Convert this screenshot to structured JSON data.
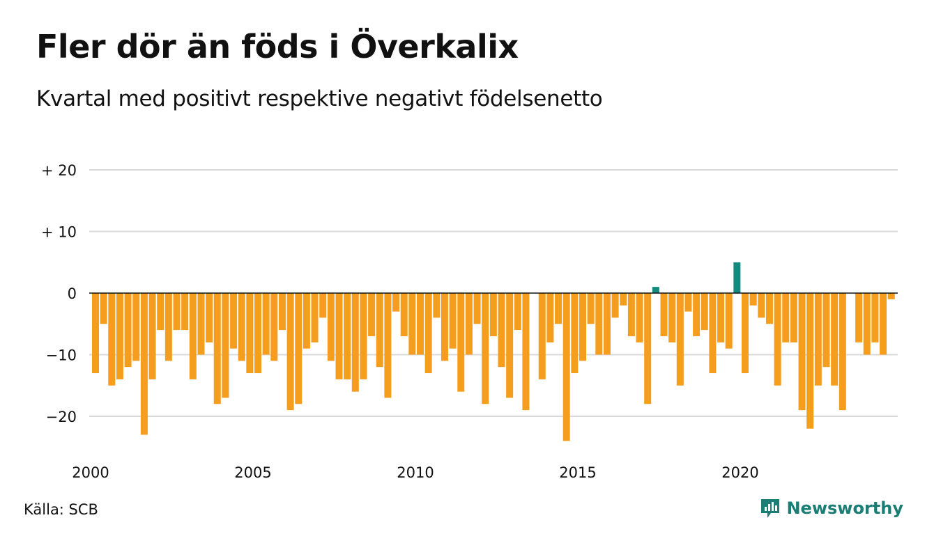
{
  "title": "Fler dör än föds i Överkalix",
  "subtitle": "Kvartal med positivt respektive negativt födelsenetto",
  "source": "Källa: SCB",
  "brand": {
    "name": "Newsworthy",
    "icon": "newsworthy-chart-bubble-icon",
    "color": "#1a7e75"
  },
  "colors": {
    "positive": "#14897d",
    "negative": "#f59d1c",
    "grid": "#d9d9d9",
    "zero_line": "#111111"
  },
  "chart_data": {
    "type": "bar",
    "x_start_year": 2000,
    "quarters_per_year": 4,
    "xticks": [
      "2000",
      "2005",
      "2010",
      "2015",
      "2020"
    ],
    "yticks": [
      {
        "value": 20,
        "label": "+ 20"
      },
      {
        "value": 10,
        "label": "+ 10"
      },
      {
        "value": 0,
        "label": "0"
      },
      {
        "value": -10,
        "label": "−10"
      },
      {
        "value": -20,
        "label": "−20"
      }
    ],
    "ylim": [
      -25,
      20
    ],
    "grid": true,
    "values": [
      -13,
      -5,
      -15,
      -14,
      -12,
      -11,
      -23,
      -14,
      -6,
      -11,
      -6,
      -6,
      -14,
      -10,
      -8,
      -18,
      -17,
      -9,
      -11,
      -13,
      -13,
      -10,
      -11,
      -6,
      -19,
      -18,
      -9,
      -8,
      -4,
      -11,
      -14,
      -14,
      -16,
      -14,
      -7,
      -12,
      -17,
      -3,
      -7,
      -10,
      -10,
      -13,
      -4,
      -11,
      -9,
      -16,
      -10,
      -5,
      -18,
      -7,
      -12,
      -17,
      -6,
      -19,
      null,
      -14,
      -8,
      -5,
      -24,
      -13,
      -11,
      -5,
      -10,
      -10,
      -4,
      -2,
      -7,
      -8,
      -18,
      1,
      -7,
      -8,
      -15,
      -3,
      -7,
      -6,
      -13,
      -8,
      -9,
      5,
      -13,
      -2,
      -4,
      -5,
      -15,
      -8,
      -8,
      -19,
      -22,
      -15,
      -12,
      -15,
      -19,
      null,
      -8,
      -10,
      -8,
      -10,
      -1
    ]
  }
}
